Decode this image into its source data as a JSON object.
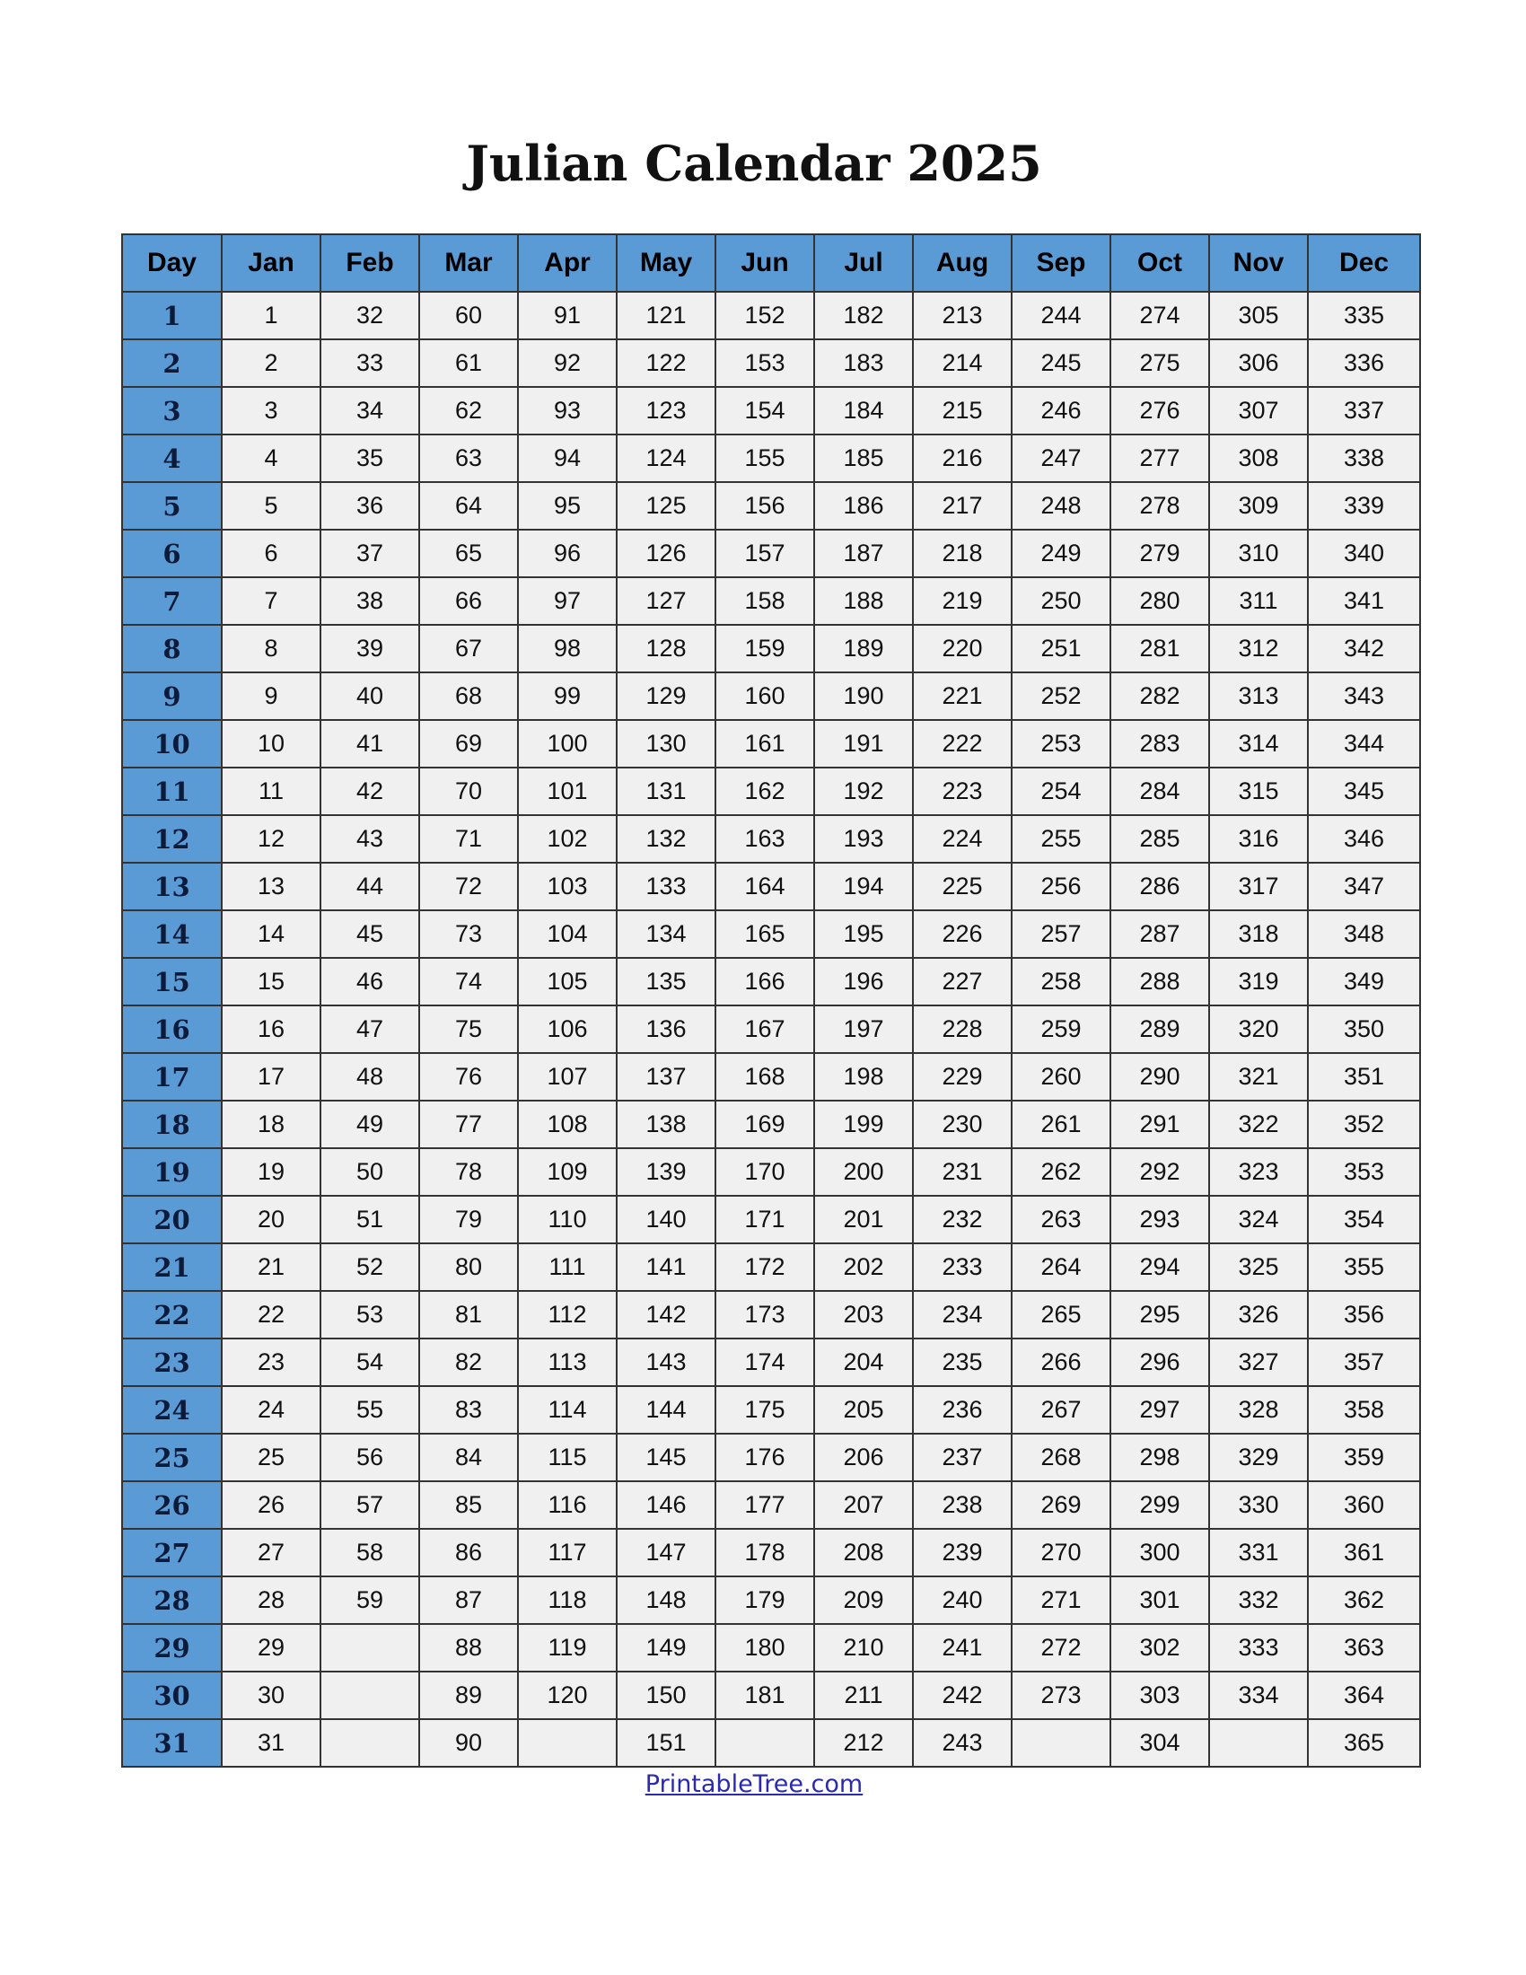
{
  "title": "Julian Calendar 2025",
  "colors": {
    "header_bg": "#5b9bd5",
    "cell_bg": "#f0f0f0",
    "link": "#2a2ab0"
  },
  "headers": [
    "Day",
    "Jan",
    "Feb",
    "Mar",
    "Apr",
    "May",
    "Jun",
    "Jul",
    "Aug",
    "Sep",
    "Oct",
    "Nov",
    "Dec"
  ],
  "month_lengths": [
    31,
    28,
    31,
    30,
    31,
    30,
    31,
    31,
    30,
    31,
    30,
    31
  ],
  "footer_link": "PrintableTree.com"
}
